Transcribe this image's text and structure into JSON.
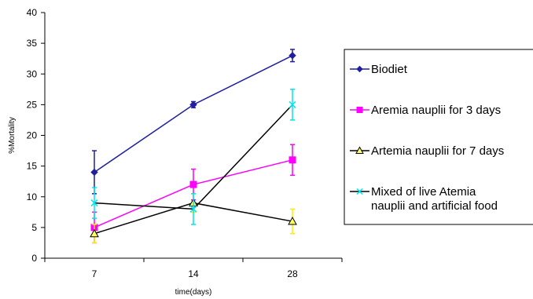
{
  "chart_data": {
    "type": "line",
    "title": "",
    "xlabel": "time(days)",
    "ylabel": "%Mortality",
    "categories": [
      "7",
      "14",
      "28"
    ],
    "ylim": [
      0,
      40
    ],
    "yticks": [
      0,
      5,
      10,
      15,
      20,
      25,
      30,
      35,
      40
    ],
    "grid": false,
    "legend_position": "right",
    "series": [
      {
        "name": "Biodiet",
        "values": [
          14,
          25,
          33
        ],
        "errors": [
          3.5,
          0.5,
          1
        ],
        "color": "#1f1f9f",
        "error_color": "#1f1f9f",
        "marker": "diamond"
      },
      {
        "name": "Aremia nauplii for 3 days",
        "values": [
          5,
          12,
          16
        ],
        "errors": [
          2.5,
          2.5,
          2.5
        ],
        "color": "#ff00ff",
        "error_color": "#ff00ff",
        "marker": "square"
      },
      {
        "name": "Artemia nauplii for 7 days",
        "values": [
          4,
          9,
          6
        ],
        "errors": [
          1.5,
          1.5,
          2
        ],
        "color": "#000000",
        "error_color": "#ffee00",
        "marker": "triangle"
      },
      {
        "name": "Mixed of live Atemia nauplii and artificial food",
        "legend_lines": [
          "Mixed of live Atemia",
          "nauplii and artificial food"
        ],
        "values": [
          9,
          8,
          25
        ],
        "errors": [
          2.5,
          2.5,
          2.5
        ],
        "color": "#000000",
        "error_color": "#00e5ee",
        "marker": "x"
      }
    ]
  }
}
